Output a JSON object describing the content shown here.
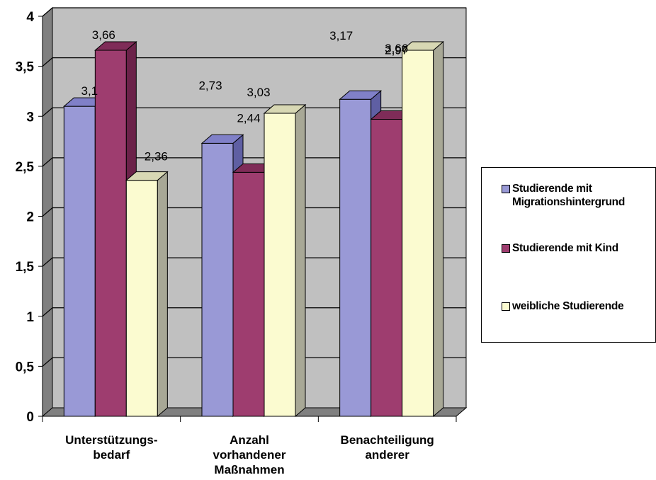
{
  "chart_data": {
    "type": "bar",
    "categories": [
      "Unterstützungs-\nbedarf",
      "Anzahl\nvorhandener\nMaßnahmen",
      "Benachteiligung\nanderer"
    ],
    "series": [
      {
        "name": "Studierende mit\nMigrationshintergrund",
        "values": [
          3.1,
          2.73,
          3.17
        ],
        "labels": [
          "3,1",
          "2,73",
          "3,17"
        ],
        "color": "#9999d6",
        "side_color": "#5f5fa3",
        "top_color": "#8080c8"
      },
      {
        "name": "Studierende mit Kind",
        "values": [
          3.66,
          2.44,
          2.97
        ],
        "labels": [
          "3,66",
          "2,44",
          "2,97"
        ],
        "color": "#9e3d6f",
        "side_color": "#6b2249",
        "top_color": "#7f2c58"
      },
      {
        "name": "weibliche Studierende",
        "values": [
          2.36,
          3.03,
          3.66
        ],
        "labels": [
          "2,36",
          "3,03",
          "3,66"
        ],
        "color": "#fbfbd0",
        "side_color": "#a8a896",
        "top_color": "#d8d8b4"
      }
    ],
    "y_ticks": [
      {
        "value": 0,
        "label": "0"
      },
      {
        "value": 0.5,
        "label": "0,5"
      },
      {
        "value": 1,
        "label": "1"
      },
      {
        "value": 1.5,
        "label": "1,5"
      },
      {
        "value": 2,
        "label": "2"
      },
      {
        "value": 2.5,
        "label": "2,5"
      },
      {
        "value": 3,
        "label": "3"
      },
      {
        "value": 3.5,
        "label": "3,5"
      },
      {
        "value": 4,
        "label": "4"
      }
    ],
    "ylim": [
      0,
      4
    ],
    "grid": true,
    "legend_position": "right",
    "wall_color": "#c0c0c0",
    "floor_color": "#808080"
  }
}
